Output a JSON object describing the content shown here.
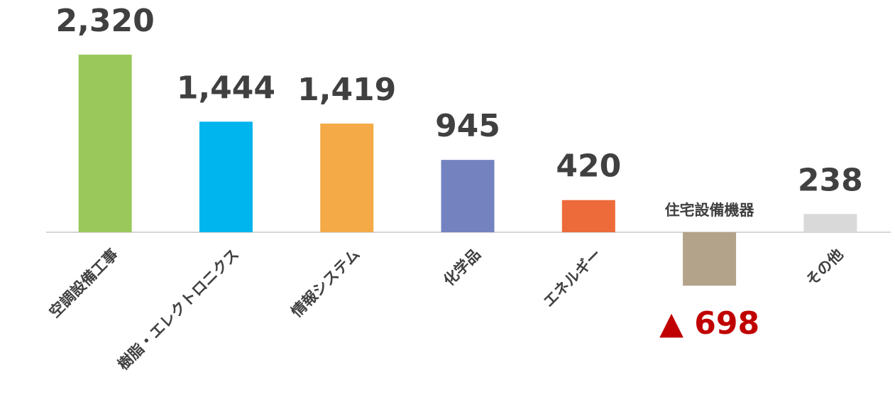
{
  "chart_data": {
    "type": "bar",
    "categories": [
      "空調設備工事",
      "樹脂・エレクトロニクス",
      "情報システム",
      "化学品",
      "エネルギー",
      "住宅設備機器",
      "その他"
    ],
    "values": [
      2320,
      1444,
      1419,
      945,
      420,
      -698,
      238
    ],
    "value_labels": [
      "2,320",
      "1,444",
      "1,419",
      "945",
      "420",
      "▲ 698",
      "238"
    ],
    "colors": [
      "#9bc85b",
      "#00b4ee",
      "#f4aa47",
      "#7483c0",
      "#ed6b3b",
      "#b3a38a",
      "#d9d9d9"
    ],
    "negative_label_color": "#c00000",
    "ylim": [
      -2000,
      3000
    ]
  }
}
